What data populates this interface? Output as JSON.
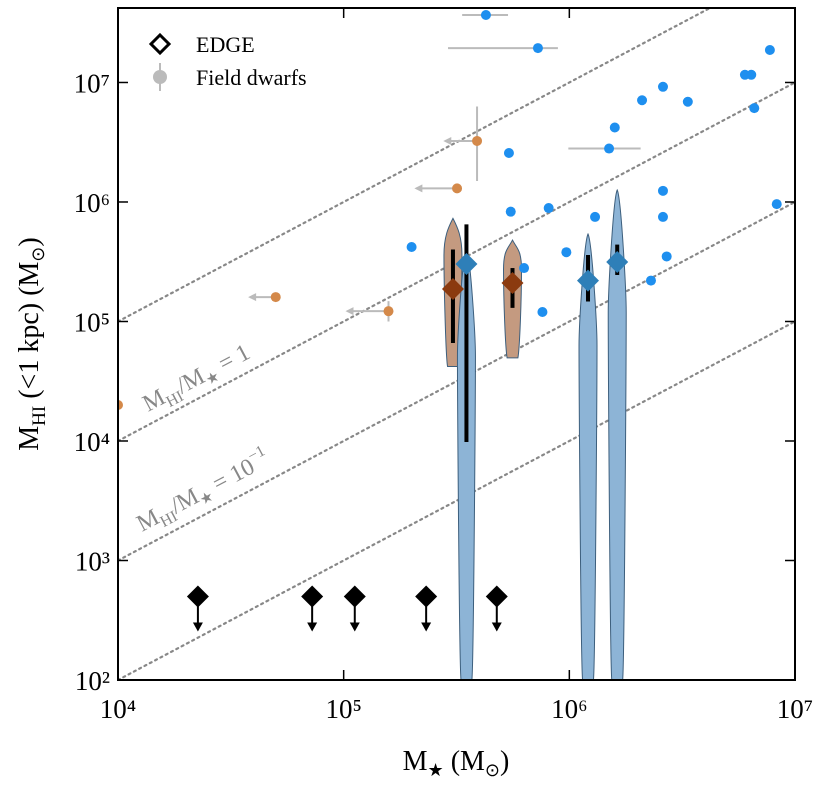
{
  "chart_data": {
    "type": "scatter",
    "xlabel": [
      "M",
      "★",
      " (M",
      "⊙",
      ")"
    ],
    "ylabel": [
      "M",
      "HI",
      " (<1 kpc) (M",
      "⊙",
      ")"
    ],
    "xlog": true,
    "ylog": true,
    "xlim": [
      10000,
      10000000
    ],
    "ylim": [
      100,
      42000000
    ],
    "xticks": [
      {
        "value": 10000,
        "label": "10⁴"
      },
      {
        "value": 100000,
        "label": "10⁵"
      },
      {
        "value": 1000000,
        "label": "10⁶"
      },
      {
        "value": 10000000,
        "label": "10⁷"
      }
    ],
    "yticks": [
      {
        "value": 100,
        "label": "10²"
      },
      {
        "value": 1000,
        "label": "10³"
      },
      {
        "value": 10000,
        "label": "10⁴"
      },
      {
        "value": 100000,
        "label": "10⁵"
      },
      {
        "value": 1000000,
        "label": "10⁶"
      },
      {
        "value": 10000000,
        "label": "10⁷"
      }
    ],
    "ratio_lines": [
      10,
      1,
      0.1,
      0.01
    ],
    "annotations": [
      [
        "M",
        "HI",
        "/M",
        "★",
        " = 1"
      ],
      [
        "M",
        "HI",
        "/M",
        "★",
        " = 10",
        "−1"
      ]
    ],
    "series": [
      {
        "name": "EDGE",
        "color": "#000000",
        "marker": "diamond",
        "x": [
          22600,
          72500,
          112000,
          232000,
          477000
        ],
        "values": [
          500,
          500,
          500,
          500,
          500
        ]
      },
      {
        "name": "Field dwarfs",
        "color": "#bbbbbb",
        "marker": "circle",
        "x": [
          427000,
          726000,
          7740000,
          6000000,
          6400000,
          2600000,
          3350000,
          2100000,
          6600000,
          1590000,
          1500000,
          540000,
          2600000,
          810000,
          550000,
          1300000,
          2600000,
          8300000,
          200000,
          970000,
          630000,
          2700000,
          2300000,
          760000,
          390000,
          318000,
          50000,
          158000,
          10000
        ],
        "values": [
          36700000,
          19400000,
          18700000,
          11600000,
          11600000,
          9200000,
          6900000,
          7100000,
          6100000,
          4200000,
          2800000,
          2570000,
          1240000,
          890000,
          830000,
          750000,
          750000,
          960000,
          420000,
          380000,
          280000,
          350000,
          220000,
          120000,
          3240000,
          1300000,
          160000,
          122000,
          20000
        ],
        "colors": [
          "#1e8fef",
          "#1e8fef",
          "#1e8fef",
          "#1e8fef",
          "#1e8fef",
          "#1e8fef",
          "#1e8fef",
          "#1e8fef",
          "#1e8fef",
          "#1e8fef",
          "#1e8fef",
          "#1e8fef",
          "#1e8fef",
          "#1e8fef",
          "#1e8fef",
          "#1e8fef",
          "#1e8fef",
          "#1e8fef",
          "#1e8fef",
          "#1e8fef",
          "#1e8fef",
          "#1e8fef",
          "#1e8fef",
          "#1e8fef",
          "#d4894a",
          "#d4894a",
          "#d4894a",
          "#d4894a",
          "#d4894a"
        ],
        "xerr": [
          [
            335000,
            535000
          ],
          [
            290000,
            890000
          ],
          null,
          null,
          null,
          null,
          null,
          null,
          null,
          null,
          [
            990000,
            2070000
          ],
          null,
          null,
          null,
          null,
          null,
          null,
          null,
          null,
          null,
          null,
          null,
          null,
          null,
          [
            282000,
            390000
          ],
          [
            210000,
            318000
          ],
          [
            38500,
            50000
          ],
          [
            104000,
            158000
          ],
          null
        ],
        "yerr": [
          null,
          null,
          null,
          null,
          null,
          null,
          null,
          null,
          null,
          null,
          null,
          null,
          null,
          null,
          null,
          null,
          null,
          null,
          null,
          null,
          null,
          null,
          null,
          null,
          [
            1500000,
            6300000
          ],
          null,
          null,
          [
            100000,
            148000
          ],
          null
        ]
      }
    ],
    "violins": [
      {
        "x": 305000,
        "y": 187000,
        "yerr": [
          66000,
          400000
        ],
        "range": [
          42000,
          730000
        ],
        "color": "#8b3a0f",
        "fill": "#c49a80"
      },
      {
        "x": 350000,
        "y": 303000,
        "yerr": [
          9800,
          650000
        ],
        "range": [
          100,
          410000
        ],
        "color": "#2e7fb8",
        "fill": "#8db4d6"
      },
      {
        "x": 560000,
        "y": 210000,
        "yerr": [
          130000,
          280000
        ],
        "range": [
          49600,
          480000
        ],
        "color": "#8b3a0f",
        "fill": "#c49a80"
      },
      {
        "x": 1210000,
        "y": 220000,
        "yerr": [
          147000,
          360000
        ],
        "range": [
          100,
          540000
        ],
        "color": "#2e7fb8",
        "fill": "#8db4d6"
      },
      {
        "x": 1630000,
        "y": 315000,
        "yerr": [
          245000,
          440000
        ],
        "range": [
          100,
          1260000
        ],
        "color": "#2e7fb8",
        "fill": "#8db4d6"
      }
    ]
  }
}
